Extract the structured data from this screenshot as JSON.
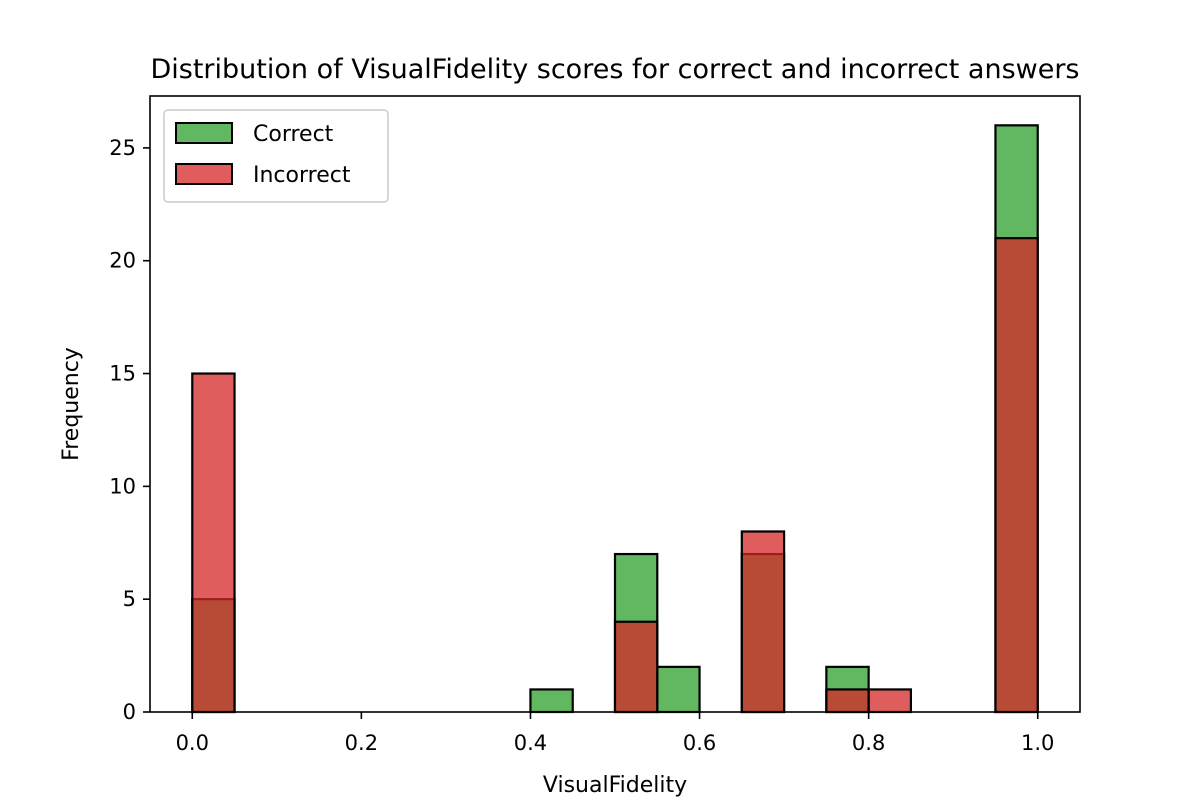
{
  "chart_data": {
    "type": "bar",
    "title": "Distribution of VisualFidelity scores for correct and incorrect answers",
    "xlabel": "VisualFidelity",
    "ylabel": "Frequency",
    "xlim": [
      -0.05,
      1.05
    ],
    "ylim": [
      0,
      27.3
    ],
    "xticks": [
      "0.0",
      "0.2",
      "0.4",
      "0.6",
      "0.8",
      "1.0"
    ],
    "yticks": [
      "0",
      "5",
      "10",
      "15",
      "20",
      "25"
    ],
    "bin_width": 0.05,
    "bin_starts": [
      0.0,
      0.05,
      0.1,
      0.15,
      0.2,
      0.25,
      0.3,
      0.35,
      0.4,
      0.45,
      0.5,
      0.55,
      0.6,
      0.65,
      0.7,
      0.75,
      0.8,
      0.85,
      0.9,
      0.95
    ],
    "series": [
      {
        "name": "Correct",
        "color": "#2ca02c",
        "values": [
          5,
          0,
          0,
          0,
          0,
          0,
          0,
          0,
          1,
          0,
          7,
          2,
          0,
          7,
          0,
          2,
          0,
          0,
          0,
          26
        ]
      },
      {
        "name": "Incorrect",
        "color": "#d62728",
        "values": [
          15,
          0,
          0,
          0,
          0,
          0,
          0,
          0,
          0,
          0,
          4,
          0,
          0,
          8,
          0,
          1,
          1,
          0,
          0,
          21
        ]
      }
    ],
    "legend_position": "upper-left",
    "grid": false
  }
}
